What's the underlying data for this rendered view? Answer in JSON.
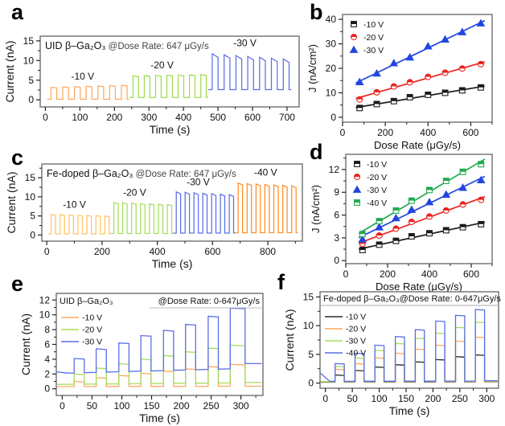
{
  "figure": {
    "background": "#ffffff",
    "text_color": "#111111",
    "axis_color": "#6e6e6e"
  },
  "chart_data": [
    {
      "panel": "a",
      "type": "pulse",
      "title": {
        "material": "UID β–Ga₂O₃",
        "condition": "@Dose Rate: 647 μGy/s"
      },
      "xlabel": "Time (s)",
      "ylabel": "Current (nA)",
      "xlim": [
        -15,
        735
      ],
      "ylim": [
        -1.8,
        16.2
      ],
      "xticks": [
        0,
        100,
        200,
        300,
        400,
        500,
        600,
        700
      ],
      "yticks": [
        0,
        5,
        10,
        15
      ],
      "xminor": 50,
      "yminor": 2.5,
      "segments": [
        {
          "label": "-10 V",
          "color": "#ffa85e",
          "t0": 5,
          "t1": 243,
          "n": 7,
          "low": 0.15,
          "h0": 3.2,
          "h1": 3.7,
          "sag": 0.15,
          "label_x": 108,
          "label_y": 5.2
        },
        {
          "label": "-20 V",
          "color": "#9fdb4f",
          "t0": 243,
          "t1": 472,
          "n": 7,
          "low": 0.6,
          "h0": 6.1,
          "h1": 6.4,
          "sag": 0.2,
          "label_x": 338,
          "label_y": 8.0
        },
        {
          "label": "-30 V",
          "color": "#5b6ee8",
          "t0": 472,
          "t1": 712,
          "n": 7,
          "low": 2.6,
          "h0": 11.7,
          "h1": 10.4,
          "sag": 0.9,
          "label_x": 578,
          "label_y": 13.6
        }
      ]
    },
    {
      "panel": "b",
      "type": "scatter",
      "xlabel": "Dose Rate (μGy/s)",
      "ylabel": "J (nA/cm²)",
      "xlim": [
        0,
        700
      ],
      "ylim": [
        -2,
        42
      ],
      "xticks": [
        0,
        200,
        400,
        600
      ],
      "yticks": [
        0,
        10,
        20,
        30,
        40
      ],
      "xminor": 100,
      "yminor": 5,
      "x": [
        80,
        160,
        240,
        315,
        400,
        480,
        560,
        647
      ],
      "series": [
        {
          "label": "-10 V",
          "color": "#1a1a1a",
          "marker": "square",
          "values": [
            3.8,
            5.4,
            6.6,
            8.2,
            9.2,
            10.0,
            11.0,
            12.2
          ]
        },
        {
          "label": "-20 V",
          "color": "#e8231e",
          "marker": "circle",
          "values": [
            7.3,
            10.2,
            12.6,
            14.3,
            16.5,
            18.2,
            19.9,
            21.7
          ]
        },
        {
          "label": "-30 V",
          "color": "#2247e0",
          "marker": "triangle",
          "values": [
            14.4,
            17.9,
            22.1,
            24.5,
            29.0,
            31.8,
            34.8,
            38.4
          ]
        }
      ]
    },
    {
      "panel": "c",
      "type": "pulse",
      "title": {
        "material": "Fe-doped β–Ga₂O₃",
        "condition": "@Dose Rate: 647 μGy/s"
      },
      "xlabel": "Time (s)",
      "ylabel": "Current (nA)",
      "xlim": [
        -18,
        925
      ],
      "ylim": [
        -1.6,
        18.6
      ],
      "xticks": [
        0,
        200,
        400,
        600,
        800
      ],
      "yticks": [
        0,
        5,
        10,
        15
      ],
      "xminor": 100,
      "yminor": 2.5,
      "segments": [
        {
          "label": "-10 V",
          "color": "#ffc369",
          "t0": 5,
          "t1": 232,
          "n": 7,
          "low": 0.3,
          "h0": 5.4,
          "h1": 5.0,
          "sag": 0.2,
          "label_x": 100,
          "label_y": 7.1
        },
        {
          "label": "-20 V",
          "color": "#a5dd5c",
          "t0": 232,
          "t1": 458,
          "n": 7,
          "low": 0.4,
          "h0": 8.5,
          "h1": 8.0,
          "sag": 0.3,
          "label_x": 318,
          "label_y": 10.3
        },
        {
          "label": "-30 V",
          "color": "#5b6ee8",
          "t0": 458,
          "t1": 682,
          "n": 7,
          "low": 0.5,
          "h0": 11.3,
          "h1": 10.6,
          "sag": 0.5,
          "label_x": 548,
          "label_y": 13.0
        },
        {
          "label": "-40 V",
          "color": "#ff8c26",
          "t0": 682,
          "t1": 908,
          "n": 7,
          "low": 0.6,
          "h0": 13.6,
          "h1": 12.9,
          "sag": 0.5,
          "label_x": 792,
          "label_y": 15.5
        }
      ]
    },
    {
      "panel": "d",
      "type": "scatter",
      "xlabel": "Dose Rate (μGy/s)",
      "ylabel": "J (nA/cm²)",
      "xlim": [
        0,
        700
      ],
      "ylim": [
        -0.4,
        14
      ],
      "xticks": [
        0,
        200,
        400,
        600
      ],
      "yticks": [
        0,
        3,
        6,
        9,
        12
      ],
      "xminor": 100,
      "yminor": 1.5,
      "x": [
        80,
        160,
        240,
        315,
        400,
        480,
        560,
        647
      ],
      "series": [
        {
          "label": "-10 V",
          "color": "#1a1a1a",
          "marker": "square",
          "values": [
            1.4,
            2.1,
            2.6,
            3.2,
            3.6,
            4.0,
            4.4,
            4.8
          ]
        },
        {
          "label": "-20 V",
          "color": "#e8231e",
          "marker": "circle",
          "values": [
            2.2,
            3.3,
            4.2,
            5.1,
            5.8,
            6.6,
            7.4,
            8.0
          ]
        },
        {
          "label": "-30 V",
          "color": "#2247e0",
          "marker": "triangle",
          "values": [
            2.8,
            4.4,
            5.6,
            6.7,
            7.7,
            8.7,
            9.6,
            10.6
          ]
        },
        {
          "label": "-40 V",
          "color": "#21a94f",
          "marker": "square",
          "values": [
            3.5,
            5.2,
            6.6,
            7.9,
            9.3,
            10.5,
            11.7,
            12.7
          ]
        }
      ]
    },
    {
      "panel": "e",
      "type": "staircase",
      "title": {
        "material": "UID β–Ga₂O₃",
        "condition": "@Dose Rate: 0-647μGy/s"
      },
      "xlabel": "Time (s)",
      "ylabel": "Current (nA)",
      "xlim": [
        -10,
        337
      ],
      "ylim": [
        -0.9,
        12.9
      ],
      "xticks": [
        0,
        50,
        100,
        150,
        200,
        250,
        300
      ],
      "yticks": [
        0,
        2,
        4,
        6,
        8,
        10,
        12
      ],
      "xminor": 25,
      "yminor": 1,
      "windows": [
        [
          20,
          37
        ],
        [
          57,
          74
        ],
        [
          95,
          112
        ],
        [
          132,
          149
        ],
        [
          170,
          187
        ],
        [
          207,
          224
        ],
        [
          245,
          262
        ],
        [
          282,
          307
        ]
      ],
      "series": [
        {
          "label": "-10 V",
          "color": "#ffa85e",
          "base0": 0.3,
          "base1": 0.35,
          "tail": 0.35,
          "highs": [
            1.0,
            1.5,
            1.8,
            2.1,
            2.4,
            2.7,
            3.0,
            3.3
          ]
        },
        {
          "label": "-20 V",
          "color": "#a5dd5c",
          "base0": 0.6,
          "base1": 0.8,
          "tail": 0.85,
          "highs": [
            2.0,
            2.8,
            3.4,
            4.0,
            4.5,
            5.0,
            5.5,
            5.9
          ]
        },
        {
          "label": "-30 V",
          "color": "#5b6ee8",
          "base0": 2.1,
          "base1": 2.7,
          "tail": 3.4,
          "init": 2.3,
          "highs": [
            4.1,
            5.4,
            6.2,
            7.2,
            7.9,
            8.7,
            9.8,
            10.9
          ]
        }
      ]
    },
    {
      "panel": "f",
      "type": "staircase",
      "title": {
        "material": "Fe-doped β–Ga₂O₃",
        "condition": "@Dose Rate: 0-647μGy/s"
      },
      "title_underline": true,
      "xlabel": "Time (s)",
      "ylabel": "Current (nA)",
      "xlim": [
        -10,
        322
      ],
      "ylim": [
        -0.9,
        15.9
      ],
      "xticks": [
        0,
        50,
        100,
        150,
        200,
        250,
        300
      ],
      "yticks": [
        0,
        5,
        10,
        15
      ],
      "xminor": 25,
      "yminor": 2.5,
      "windows": [
        [
          18,
          35
        ],
        [
          55,
          72
        ],
        [
          92,
          109
        ],
        [
          130,
          147
        ],
        [
          167,
          184
        ],
        [
          205,
          222
        ],
        [
          242,
          259
        ],
        [
          279,
          296
        ]
      ],
      "series": [
        {
          "label": "-10 V",
          "color": "#2b2b2b",
          "base0": 0.15,
          "base1": 0.2,
          "tail": 0.2,
          "highs": [
            1.4,
            2.2,
            2.8,
            3.2,
            3.7,
            4.1,
            4.6,
            4.9
          ]
        },
        {
          "label": "-20 V",
          "color": "#ffa85e",
          "base0": 0.2,
          "base1": 0.25,
          "tail": 0.25,
          "highs": [
            2.4,
            3.4,
            4.4,
            5.2,
            5.9,
            6.6,
            7.3,
            8.0
          ]
        },
        {
          "label": "-30 V",
          "color": "#a5dd5c",
          "base0": 0.25,
          "base1": 0.3,
          "tail": 0.3,
          "highs": [
            2.9,
            4.4,
            5.7,
            6.9,
            7.8,
            8.7,
            9.7,
            10.6
          ]
        },
        {
          "label": "-40 V",
          "color": "#5b6ee8",
          "base0": 0.3,
          "base1": 0.35,
          "tail": 0.4,
          "init": 1.7,
          "highs": [
            3.4,
            5.2,
            6.6,
            8.1,
            9.3,
            10.8,
            11.8,
            12.8
          ]
        }
      ]
    }
  ]
}
